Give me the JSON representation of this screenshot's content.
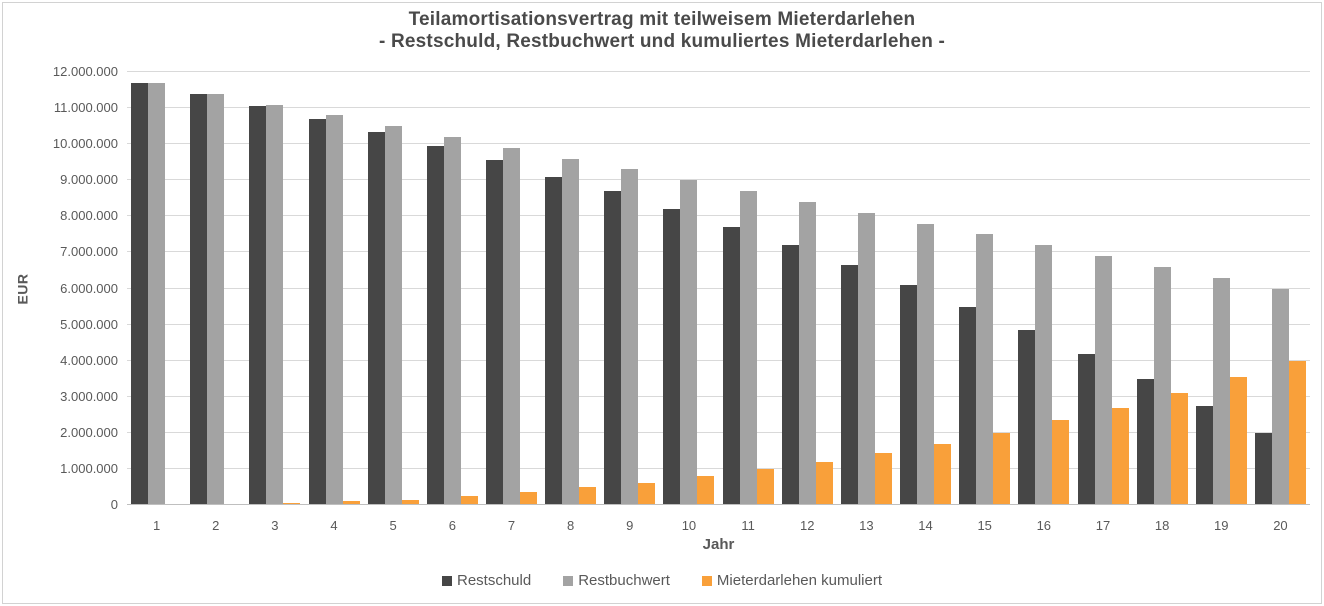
{
  "title": {
    "line1": "Teilamortisationsvertrag mit teilweisem Mieterdarlehen",
    "line2": "- Restschuld, Restbuchwert und kumuliertes Mieterdarlehen -"
  },
  "chart_data": {
    "type": "bar",
    "title": "Teilamortisationsvertrag mit teilweisem Mieterdarlehen - Restschuld, Restbuchwert und kumuliertes Mieterdarlehen -",
    "xlabel": "Jahr",
    "ylabel": "EUR",
    "categories": [
      "1",
      "2",
      "3",
      "4",
      "5",
      "6",
      "7",
      "8",
      "9",
      "10",
      "11",
      "12",
      "13",
      "14",
      "15",
      "16",
      "17",
      "18",
      "19",
      "20"
    ],
    "series": [
      {
        "name": "Restschuld",
        "color": "#464646",
        "values": [
          11700000,
          11400000,
          11050000,
          10700000,
          10350000,
          9950000,
          9550000,
          9100000,
          8700000,
          8200000,
          7700000,
          7200000,
          6650000,
          6100000,
          5500000,
          4850000,
          4200000,
          3500000,
          2750000,
          2000000
        ]
      },
      {
        "name": "Restbuchwert",
        "color": "#a3a3a3",
        "values": [
          11700000,
          11400000,
          11100000,
          10800000,
          10500000,
          10200000,
          9900000,
          9600000,
          9300000,
          9000000,
          8700000,
          8400000,
          8100000,
          7800000,
          7500000,
          7200000,
          6900000,
          6600000,
          6300000,
          6000000
        ]
      },
      {
        "name": "Mieterdarlehen kumuliert",
        "color": "#f9a03a",
        "values": [
          0,
          0,
          50000,
          100000,
          150000,
          250000,
          350000,
          500000,
          600000,
          800000,
          1000000,
          1200000,
          1450000,
          1700000,
          2000000,
          2350000,
          2700000,
          3100000,
          3550000,
          4000000
        ]
      }
    ],
    "ylim": [
      0,
      12000000
    ],
    "ytick_step": 1000000,
    "ytick_labels": [
      "0",
      "1.000.000",
      "2.000.000",
      "3.000.000",
      "4.000.000",
      "5.000.000",
      "6.000.000",
      "7.000.000",
      "8.000.000",
      "9.000.000",
      "10.000.000",
      "11.000.000",
      "12.000.000"
    ],
    "grid": true,
    "legend_position": "bottom"
  },
  "colors": {
    "gridline": "#d9d9d9",
    "axis_line": "#bfbfbf",
    "axis_text": "#595959",
    "title_text": "#4a4a4a"
  }
}
